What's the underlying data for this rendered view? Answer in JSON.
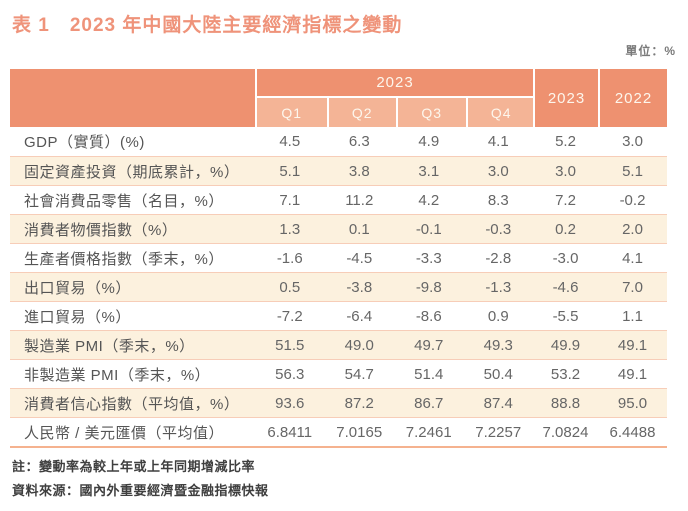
{
  "title": "表 1　2023 年中國大陸主要經濟指標之變動",
  "unit_label": "單位：%",
  "colors": {
    "title_text": "#EF937A",
    "header_bg": "#EE9170",
    "subheader_bg": "#F4B496",
    "stripe_bg": "#FCF1DE",
    "separator": "#F7CDB8",
    "value_text": "#666666"
  },
  "table": {
    "header": {
      "year_span": "2023",
      "quarters": [
        "Q1",
        "Q2",
        "Q3",
        "Q4"
      ],
      "annual_2023": "2023",
      "annual_2022": "2022"
    },
    "rows": [
      {
        "label": "GDP（實質）(%)",
        "values": [
          "4.5",
          "6.3",
          "4.9",
          "4.1",
          "5.2",
          "3.0"
        ]
      },
      {
        "label": "固定資產投資（期底累計，%）",
        "values": [
          "5.1",
          "3.8",
          "3.1",
          "3.0",
          "3.0",
          "5.1"
        ]
      },
      {
        "label": "社會消費品零售（名目，%）",
        "values": [
          "7.1",
          "11.2",
          "4.2",
          "8.3",
          "7.2",
          "-0.2"
        ]
      },
      {
        "label": "消費者物價指數（%）",
        "values": [
          "1.3",
          "0.1",
          "-0.1",
          "-0.3",
          "0.2",
          "2.0"
        ]
      },
      {
        "label": "生產者價格指數（季末，%）",
        "values": [
          "-1.6",
          "-4.5",
          "-3.3",
          "-2.8",
          "-3.0",
          "4.1"
        ]
      },
      {
        "label": "出口貿易（%）",
        "values": [
          "0.5",
          "-3.8",
          "-9.8",
          "-1.3",
          "-4.6",
          "7.0"
        ]
      },
      {
        "label": "進口貿易（%）",
        "values": [
          "-7.2",
          "-6.4",
          "-8.6",
          "0.9",
          "-5.5",
          "1.1"
        ]
      },
      {
        "label": "製造業 PMI（季末，%）",
        "values": [
          "51.5",
          "49.0",
          "49.7",
          "49.3",
          "49.9",
          "49.1"
        ]
      },
      {
        "label": "非製造業 PMI（季末，%）",
        "values": [
          "56.3",
          "54.7",
          "51.4",
          "50.4",
          "53.2",
          "49.1"
        ]
      },
      {
        "label": "消費者信心指數（平均值，%）",
        "values": [
          "93.6",
          "87.2",
          "86.7",
          "87.4",
          "88.8",
          "95.0"
        ]
      },
      {
        "label": "人民幣 / 美元匯價（平均值）",
        "values": [
          "6.8411",
          "7.0165",
          "7.2461",
          "7.2257",
          "7.0824",
          "6.4488"
        ]
      }
    ]
  },
  "notes": {
    "note": "註：變動率為較上年或上年同期增減比率",
    "source": "資料來源：國內外重要經濟暨金融指標快報"
  }
}
